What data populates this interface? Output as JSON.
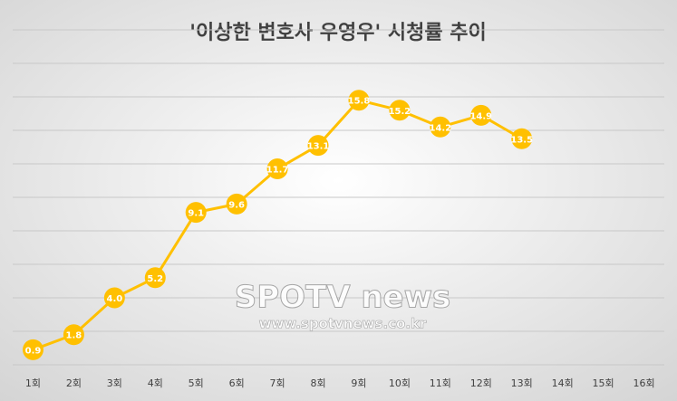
{
  "chart_data": {
    "type": "line",
    "title": "'이상한 변호사 우영우' 시청률 추이",
    "categories": [
      "1회",
      "2회",
      "3회",
      "4회",
      "5회",
      "6회",
      "7회",
      "8회",
      "9회",
      "10회",
      "11회",
      "12회",
      "13회",
      "14회",
      "15회",
      "16회"
    ],
    "series": [
      {
        "name": "시청률",
        "color": "#ffc000",
        "values": [
          0.9,
          1.8,
          4.0,
          5.2,
          9.1,
          9.6,
          11.7,
          13.1,
          15.8,
          15.2,
          14.2,
          14.9,
          13.5,
          null,
          null,
          null
        ],
        "value_labels": [
          "0.9",
          "1.8",
          "4.0",
          "5.2",
          "9.1",
          "9.6",
          "11.7",
          "13.1",
          "15.8",
          "15.2",
          "14.2",
          "14.9",
          "13.5",
          null,
          null,
          null
        ]
      }
    ],
    "ylim": [
      0,
      20
    ],
    "yticks": [
      0,
      2,
      4,
      6,
      8,
      10,
      12,
      14,
      16,
      18,
      20
    ],
    "grid": true,
    "watermark": {
      "brand": "SPOTV news",
      "url": "www.spotvnews.co.kr"
    }
  }
}
